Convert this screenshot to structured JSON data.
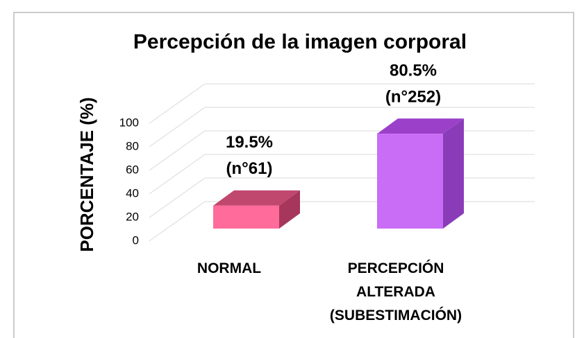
{
  "chart_data": {
    "type": "bar3d",
    "title": "Percepción de la imagen corporal",
    "y_label": "PORCENTAJE (%)",
    "categories": [
      "NORMAL",
      "PERCEPCIÓN ALTERADA (SUBESTIMACIÓN)"
    ],
    "values": [
      19.5,
      80.5
    ],
    "value_labels": [
      "19.5%",
      "80.5%"
    ],
    "count_labels": [
      "(n°61)",
      "(n°252)"
    ],
    "colors": [
      {
        "front": "#ff6b9a",
        "top": "#c0486e",
        "side": "#a6365c"
      },
      {
        "front": "#c96cf6",
        "top": "#9b40c9",
        "side": "#8a3bb8"
      }
    ],
    "ylim": [
      0,
      100
    ],
    "yticks": [
      0,
      20,
      40,
      60,
      80,
      100
    ],
    "grid": true
  }
}
